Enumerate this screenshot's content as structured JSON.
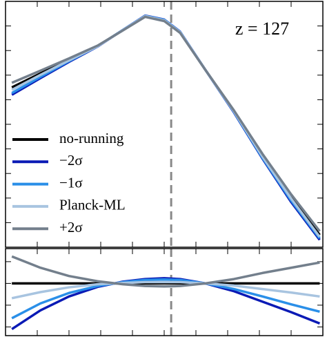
{
  "chart_data": [
    {
      "type": "line",
      "annotation": "z = 127",
      "xlim": [
        0,
        10
      ],
      "ylim": [
        0,
        10
      ],
      "xticks": [
        1,
        2,
        3,
        4,
        5,
        6,
        7,
        8,
        9
      ],
      "yticks": [
        1,
        2,
        3,
        4,
        5,
        6,
        7,
        8,
        9
      ],
      "vline": 5.22,
      "x": [
        0.2,
        1.1,
        2,
        2.9,
        3.7,
        4.4,
        5,
        5.5,
        6.3,
        7.2,
        8.1,
        9,
        9.9
      ],
      "series": [
        {
          "name": "no-running",
          "color": "#000000",
          "values": [
            6.5,
            7.07,
            7.63,
            8.18,
            8.83,
            9.39,
            9.22,
            8.74,
            7.21,
            5.53,
            3.72,
            2.04,
            0.5
          ]
        },
        {
          "name": "−2σ",
          "color": "#0a1ab5",
          "values": [
            6.2,
            6.88,
            7.54,
            8.16,
            8.84,
            9.42,
            9.26,
            8.77,
            7.21,
            5.48,
            3.6,
            1.84,
            0.3
          ]
        },
        {
          "name": "−1σ",
          "color": "#2a8fe8",
          "values": [
            6.27,
            6.93,
            7.57,
            8.17,
            8.84,
            9.41,
            9.25,
            8.76,
            7.21,
            5.5,
            3.63,
            1.9,
            0.36
          ]
        },
        {
          "name": "Planck-ML",
          "color": "#a8c4e0",
          "values": [
            6.4,
            7.01,
            7.6,
            8.17,
            8.83,
            9.4,
            9.23,
            8.75,
            7.21,
            5.52,
            3.68,
            1.98,
            0.42
          ]
        },
        {
          "name": "+2σ",
          "color": "#737f8c",
          "values": [
            6.69,
            7.18,
            7.68,
            8.2,
            8.82,
            9.37,
            9.2,
            8.72,
            7.21,
            5.56,
            3.79,
            2.15,
            0.65
          ]
        }
      ]
    },
    {
      "type": "line",
      "xlim": [
        0,
        10
      ],
      "ylim": [
        -1.2,
        0.8
      ],
      "xticks": [
        1,
        2,
        3,
        4,
        5,
        6,
        7,
        8,
        9
      ],
      "yticks": [
        -1,
        -0.5,
        0,
        0.5
      ],
      "vline": 5.22,
      "x": [
        0.2,
        1.1,
        2,
        2.9,
        3.7,
        4.4,
        5,
        5.5,
        6.3,
        7.2,
        8.1,
        9,
        9.9
      ],
      "series": [
        {
          "color": "#000000",
          "values": [
            0,
            0,
            0,
            0,
            0,
            0,
            0,
            0,
            0,
            0,
            0,
            0,
            0
          ]
        },
        {
          "color": "#0a1ab5",
          "values": [
            -1.05,
            -0.62,
            -0.3,
            -0.08,
            0.04,
            0.1,
            0.12,
            0.1,
            0,
            -0.18,
            -0.42,
            -0.66,
            -0.92
          ]
        },
        {
          "color": "#2a8fe8",
          "values": [
            -0.8,
            -0.46,
            -0.22,
            -0.06,
            0.03,
            0.08,
            0.09,
            0.08,
            0,
            -0.13,
            -0.3,
            -0.48,
            -0.65
          ]
        },
        {
          "color": "#a8c4e0",
          "values": [
            -0.34,
            -0.2,
            -0.09,
            -0.02,
            0.01,
            0.03,
            0.03,
            0.03,
            0,
            -0.05,
            -0.13,
            -0.21,
            -0.3
          ]
        },
        {
          "color": "#737f8c",
          "values": [
            0.62,
            0.36,
            0.17,
            0.05,
            -0.02,
            -0.06,
            -0.07,
            -0.06,
            0,
            0.1,
            0.24,
            0.36,
            0.48
          ]
        }
      ]
    }
  ]
}
